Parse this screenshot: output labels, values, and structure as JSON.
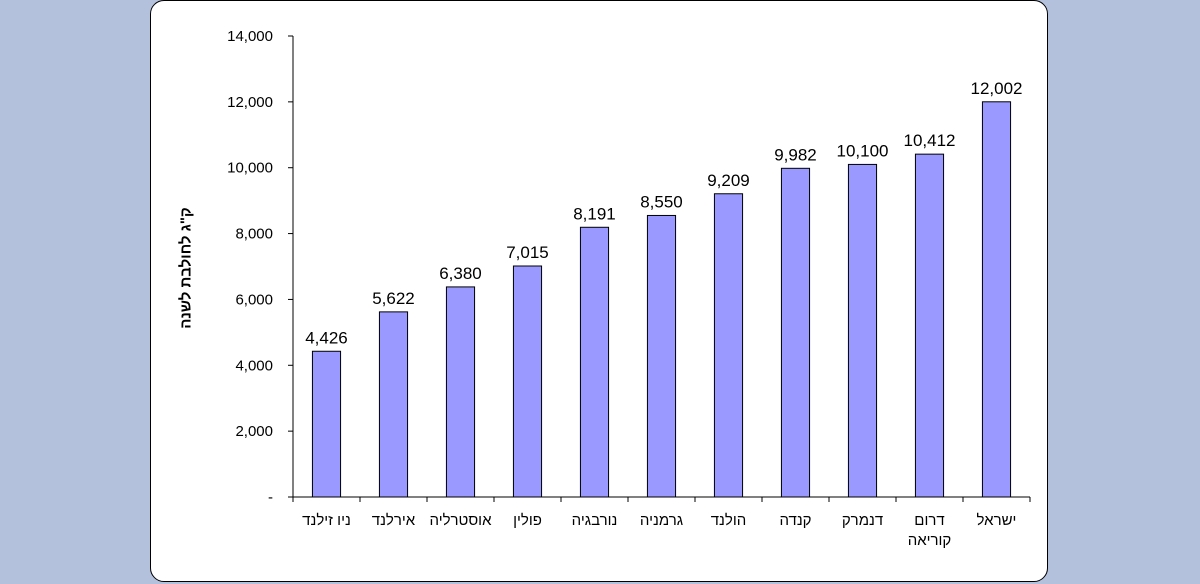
{
  "chart_data": {
    "type": "bar",
    "ylabel": "ק\"ג לחולבת לשנה",
    "xlabel": "",
    "ylim": [
      0,
      14000
    ],
    "yticks": [
      {
        "value": 0,
        "label": "-"
      },
      {
        "value": 2000,
        "label": "2,000"
      },
      {
        "value": 4000,
        "label": "4,000"
      },
      {
        "value": 6000,
        "label": "6,000"
      },
      {
        "value": 8000,
        "label": "8,000"
      },
      {
        "value": 10000,
        "label": "10,000"
      },
      {
        "value": 12000,
        "label": "12,000"
      },
      {
        "value": 14000,
        "label": "14,000"
      }
    ],
    "categories": [
      "ניו זילנד",
      "אירלנד",
      "אוסטרליה",
      "פולין",
      "נורבגיה",
      "גרמניה",
      "הולנד",
      "קנדה",
      "דנמרק",
      "דרום קוריאה",
      "ישראל"
    ],
    "values": [
      4426,
      5622,
      6380,
      7015,
      8191,
      8550,
      9209,
      9982,
      10100,
      10412,
      12002
    ],
    "value_labels": [
      "4,426",
      "5,622",
      "6,380",
      "7,015",
      "8,191",
      "8,550",
      "9,209",
      "9,982",
      "10,100",
      "10,412",
      "12,002"
    ],
    "grid": false,
    "bar_color": "#9999ff",
    "bar_edge_color": "#000000"
  }
}
